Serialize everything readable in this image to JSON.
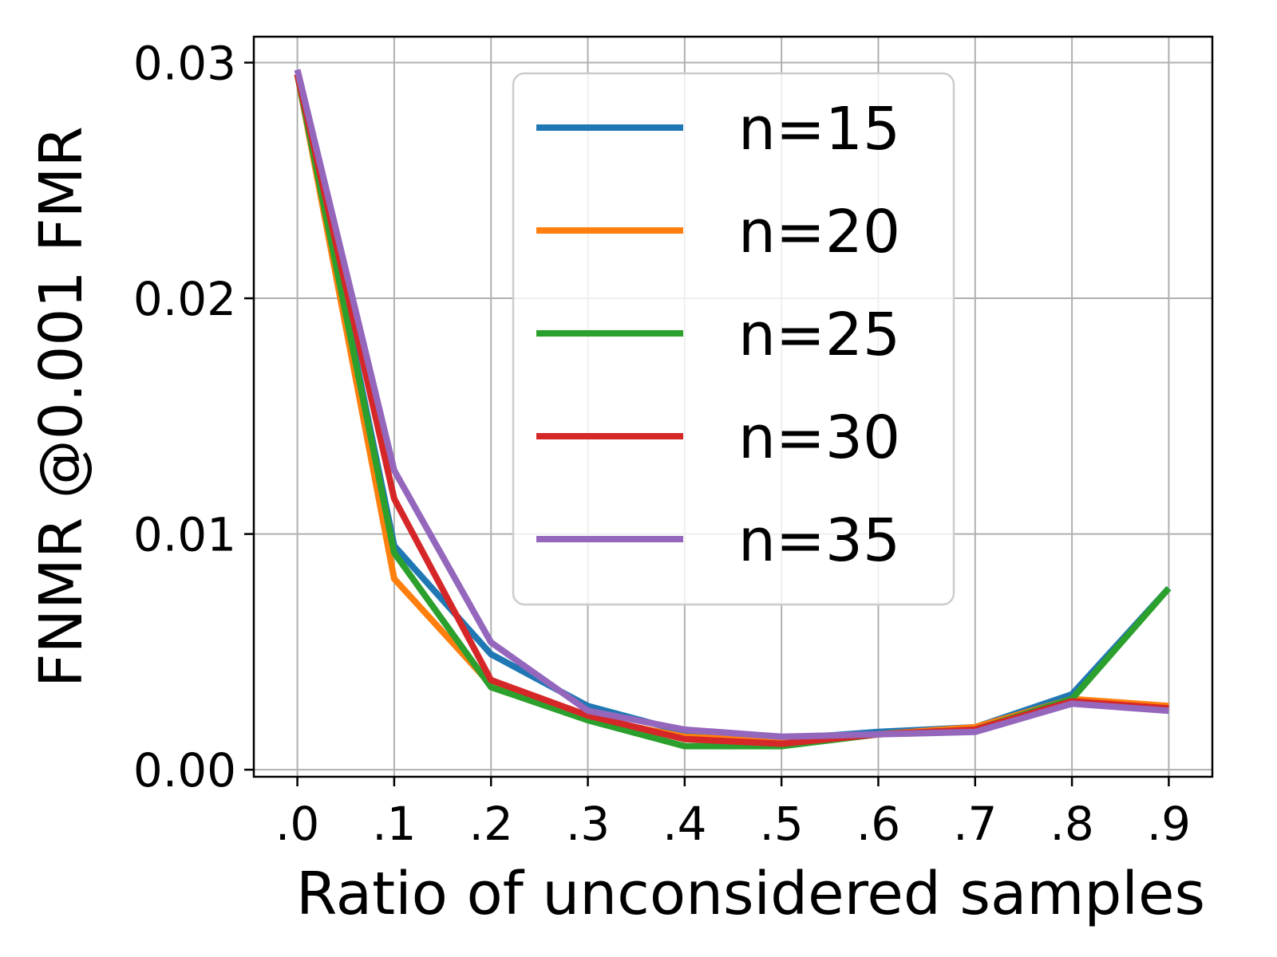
{
  "chart_data": {
    "type": "line",
    "xlabel": "Ratio of unconsidered samples",
    "ylabel": "FNMR @0.001 FMR",
    "x": [
      0.0,
      0.1,
      0.2,
      0.3,
      0.4,
      0.5,
      0.6,
      0.7,
      0.8,
      0.9
    ],
    "x_tick_labels": [
      ".0",
      ".1",
      ".2",
      ".3",
      ".4",
      ".5",
      ".6",
      ".7",
      ".8",
      ".9"
    ],
    "y_ticks": [
      0.0,
      0.01,
      0.02,
      0.03
    ],
    "y_tick_labels": [
      "0.00",
      "0.01",
      "0.02",
      "0.03"
    ],
    "xlim": [
      -0.045,
      0.945
    ],
    "ylim": [
      -0.0003,
      0.0311
    ],
    "grid": true,
    "legend_position": "top-center",
    "series": [
      {
        "name": "n=15",
        "color": "#1f77b4",
        "values": [
          0.0295,
          0.0095,
          0.0049,
          0.0027,
          0.0016,
          0.0013,
          0.0016,
          0.0018,
          0.0032,
          0.0077
        ]
      },
      {
        "name": "n=20",
        "color": "#ff7f0e",
        "values": [
          0.0295,
          0.0081,
          0.0036,
          0.0022,
          0.0014,
          0.0012,
          0.0015,
          0.0018,
          0.003,
          0.0027
        ]
      },
      {
        "name": "n=25",
        "color": "#2ca02c",
        "values": [
          0.0295,
          0.0092,
          0.0035,
          0.0021,
          0.001,
          0.001,
          0.0015,
          0.0017,
          0.003,
          0.0077
        ]
      },
      {
        "name": "n=30",
        "color": "#d62728",
        "values": [
          0.0295,
          0.0115,
          0.0038,
          0.0023,
          0.0013,
          0.0011,
          0.0015,
          0.0017,
          0.0029,
          0.0026
        ]
      },
      {
        "name": "n=35",
        "color": "#9467bd",
        "values": [
          0.0297,
          0.0127,
          0.0054,
          0.0025,
          0.0017,
          0.0014,
          0.0015,
          0.0016,
          0.0028,
          0.0025
        ]
      }
    ]
  }
}
